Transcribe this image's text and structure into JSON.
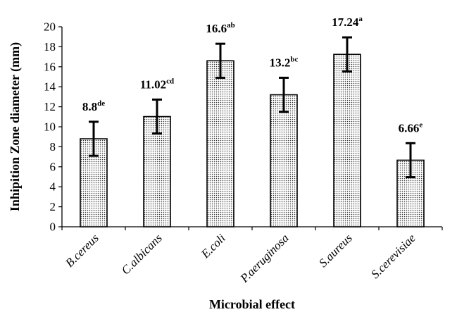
{
  "chart_data": {
    "type": "bar",
    "title": "",
    "xlabel": "Microbial effect",
    "ylabel": "Inhipition  Zone diameter (mm)",
    "ylim": [
      0,
      20
    ],
    "yticks": [
      0,
      2,
      4,
      6,
      8,
      10,
      12,
      14,
      16,
      18,
      20
    ],
    "grid": false,
    "categories": [
      "B.cereus",
      "C.albicans",
      "E.coli",
      "P.aeruginosa",
      "S.aureus",
      "S.cerevisiae"
    ],
    "values": [
      8.8,
      11.02,
      16.6,
      13.2,
      17.24,
      6.66
    ],
    "errors": [
      1.7,
      1.7,
      1.7,
      1.7,
      1.7,
      1.7
    ],
    "labels": [
      "8.8",
      "11.02",
      "16.6",
      "13.2",
      "17.24",
      "6.66"
    ],
    "significance": [
      "de",
      "cd",
      "ab",
      "bc",
      "a",
      "e"
    ],
    "colors": {
      "bar_fill_dots": "#333333",
      "bar_stroke": "#000000",
      "background": "#ffffff"
    }
  }
}
